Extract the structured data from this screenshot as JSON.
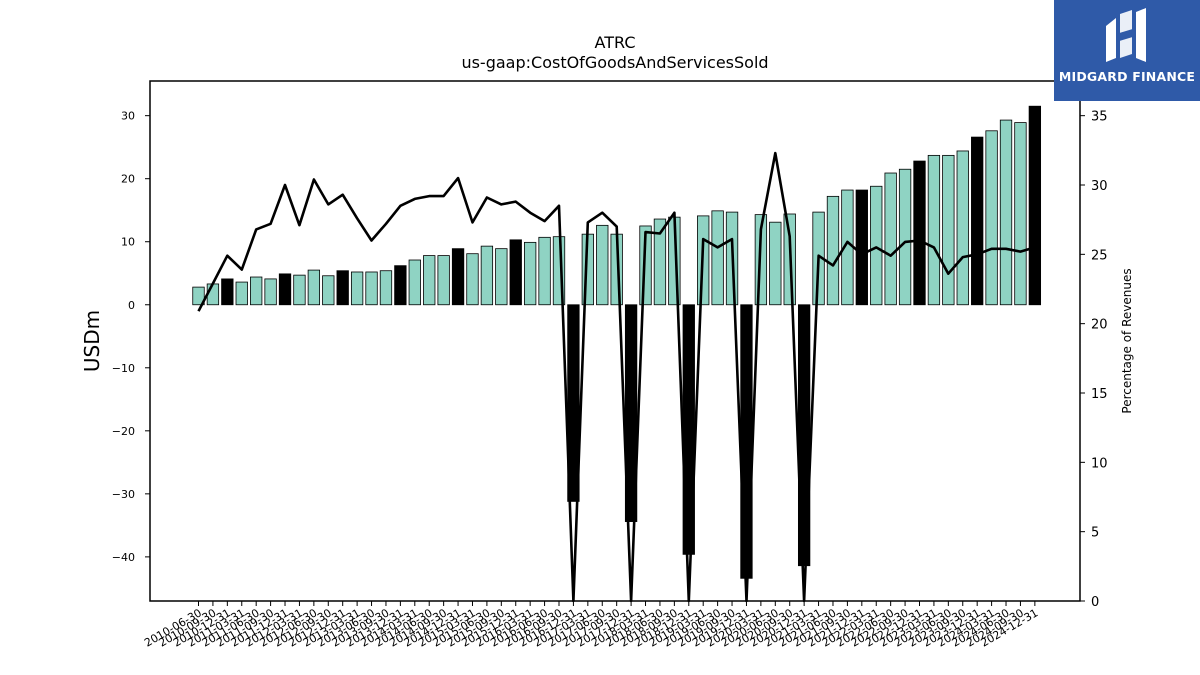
{
  "chart_data": {
    "type": "bar",
    "title": "ATRC",
    "subtitle": "us-gaap:CostOfGoodsAndServicesSold",
    "ylabel": "USDm",
    "y2label": "Percentage of Revenues",
    "ylim": [
      -47,
      35.5
    ],
    "y2lim": [
      0,
      37.5
    ],
    "yticks": [
      -40,
      -30,
      -20,
      -10,
      0,
      10,
      20,
      30
    ],
    "y2ticks": [
      0,
      5,
      10,
      15,
      20,
      25,
      30,
      35
    ],
    "categories": [
      "2010-06-30",
      "2010-09-30",
      "2010-12-31",
      "2011-03-31",
      "2011-06-30",
      "2011-09-30",
      "2011-12-31",
      "2012-03-31",
      "2012-06-30",
      "2012-09-30",
      "2012-12-31",
      "2013-03-31",
      "2013-06-30",
      "2013-09-30",
      "2013-12-31",
      "2014-03-31",
      "2014-06-30",
      "2014-09-30",
      "2014-12-31",
      "2015-03-31",
      "2015-06-30",
      "2015-09-30",
      "2015-12-31",
      "2016-03-31",
      "2016-06-30",
      "2016-09-30",
      "2016-12-31",
      "2017-03-31",
      "2017-06-30",
      "2017-09-30",
      "2017-12-31",
      "2018-03-31",
      "2018-06-30",
      "2018-09-30",
      "2018-12-31",
      "2019-03-31",
      "2019-06-30",
      "2019-09-30",
      "2019-12-31",
      "2020-03-31",
      "2020-06-30",
      "2020-09-30",
      "2020-12-31",
      "2021-03-31",
      "2021-06-30",
      "2021-09-30",
      "2021-12-31",
      "2022-03-31",
      "2022-06-30",
      "2022-09-30",
      "2022-12-31",
      "2023-03-31",
      "2023-06-30",
      "2023-09-30",
      "2023-12-31",
      "2024-03-31",
      "2024-06-30",
      "2024-09-30",
      "2024-12-31"
    ],
    "series": [
      {
        "type": "bar",
        "values": [
          2.8,
          3.3,
          4.1,
          3.6,
          4.4,
          4.1,
          4.9,
          4.7,
          5.5,
          4.6,
          5.4,
          5.2,
          5.2,
          5.4,
          6.2,
          7.1,
          7.8,
          7.8,
          8.9,
          8.1,
          9.3,
          8.9,
          10.3,
          9.9,
          10.7,
          10.8,
          -31.2,
          11.2,
          12.6,
          11.2,
          -34.4,
          12.5,
          13.6,
          13.9,
          -39.6,
          14.1,
          14.9,
          14.7,
          -43.4,
          14.3,
          13.1,
          14.4,
          -41.4,
          14.7,
          17.2,
          18.2,
          18.2,
          18.8,
          20.9,
          21.5,
          22.8,
          23.7,
          23.7,
          24.4,
          26.6,
          27.6,
          29.3,
          28.9,
          31.5
        ],
        "colors": [
          "#8fd3c3",
          "#8fd3c3",
          "#000000",
          "#8fd3c3",
          "#8fd3c3",
          "#8fd3c3",
          "#000000",
          "#8fd3c3",
          "#8fd3c3",
          "#8fd3c3",
          "#000000",
          "#8fd3c3",
          "#8fd3c3",
          "#8fd3c3",
          "#000000",
          "#8fd3c3",
          "#8fd3c3",
          "#8fd3c3",
          "#000000",
          "#8fd3c3",
          "#8fd3c3",
          "#8fd3c3",
          "#000000",
          "#8fd3c3",
          "#8fd3c3",
          "#8fd3c3",
          "#000000",
          "#8fd3c3",
          "#8fd3c3",
          "#8fd3c3",
          "#000000",
          "#8fd3c3",
          "#8fd3c3",
          "#8fd3c3",
          "#000000",
          "#8fd3c3",
          "#8fd3c3",
          "#8fd3c3",
          "#000000",
          "#8fd3c3",
          "#8fd3c3",
          "#8fd3c3",
          "#000000",
          "#8fd3c3",
          "#8fd3c3",
          "#8fd3c3",
          "#000000",
          "#8fd3c3",
          "#8fd3c3",
          "#8fd3c3",
          "#000000",
          "#8fd3c3",
          "#8fd3c3",
          "#8fd3c3",
          "#000000",
          "#8fd3c3",
          "#8fd3c3",
          "#8fd3c3",
          "#000000"
        ]
      },
      {
        "type": "line",
        "axis": "right",
        "values": [
          20.9,
          22.9,
          24.9,
          23.9,
          26.8,
          27.2,
          30.0,
          27.1,
          30.4,
          28.6,
          29.3,
          27.6,
          26.0,
          27.2,
          28.5,
          29.0,
          29.2,
          29.2,
          30.5,
          27.3,
          29.1,
          28.6,
          28.8,
          28.0,
          27.4,
          28.5,
          0.0,
          27.3,
          28.0,
          27.0,
          0.0,
          26.6,
          26.5,
          28.0,
          0.0,
          26.1,
          25.5,
          26.1,
          0.0,
          26.8,
          32.3,
          26.3,
          0.0,
          24.9,
          24.2,
          25.9,
          25.0,
          25.5,
          24.9,
          25.9,
          26.0,
          25.5,
          23.6,
          24.8,
          25.0,
          25.4,
          25.4,
          25.2,
          25.5
        ]
      }
    ],
    "colors": {
      "bar": "#8fd3c3",
      "bar_alt": "#000000",
      "line": "#000000"
    },
    "grid": false,
    "legend": "none"
  },
  "logo": {
    "text": "MIDGARD FINANCE"
  }
}
